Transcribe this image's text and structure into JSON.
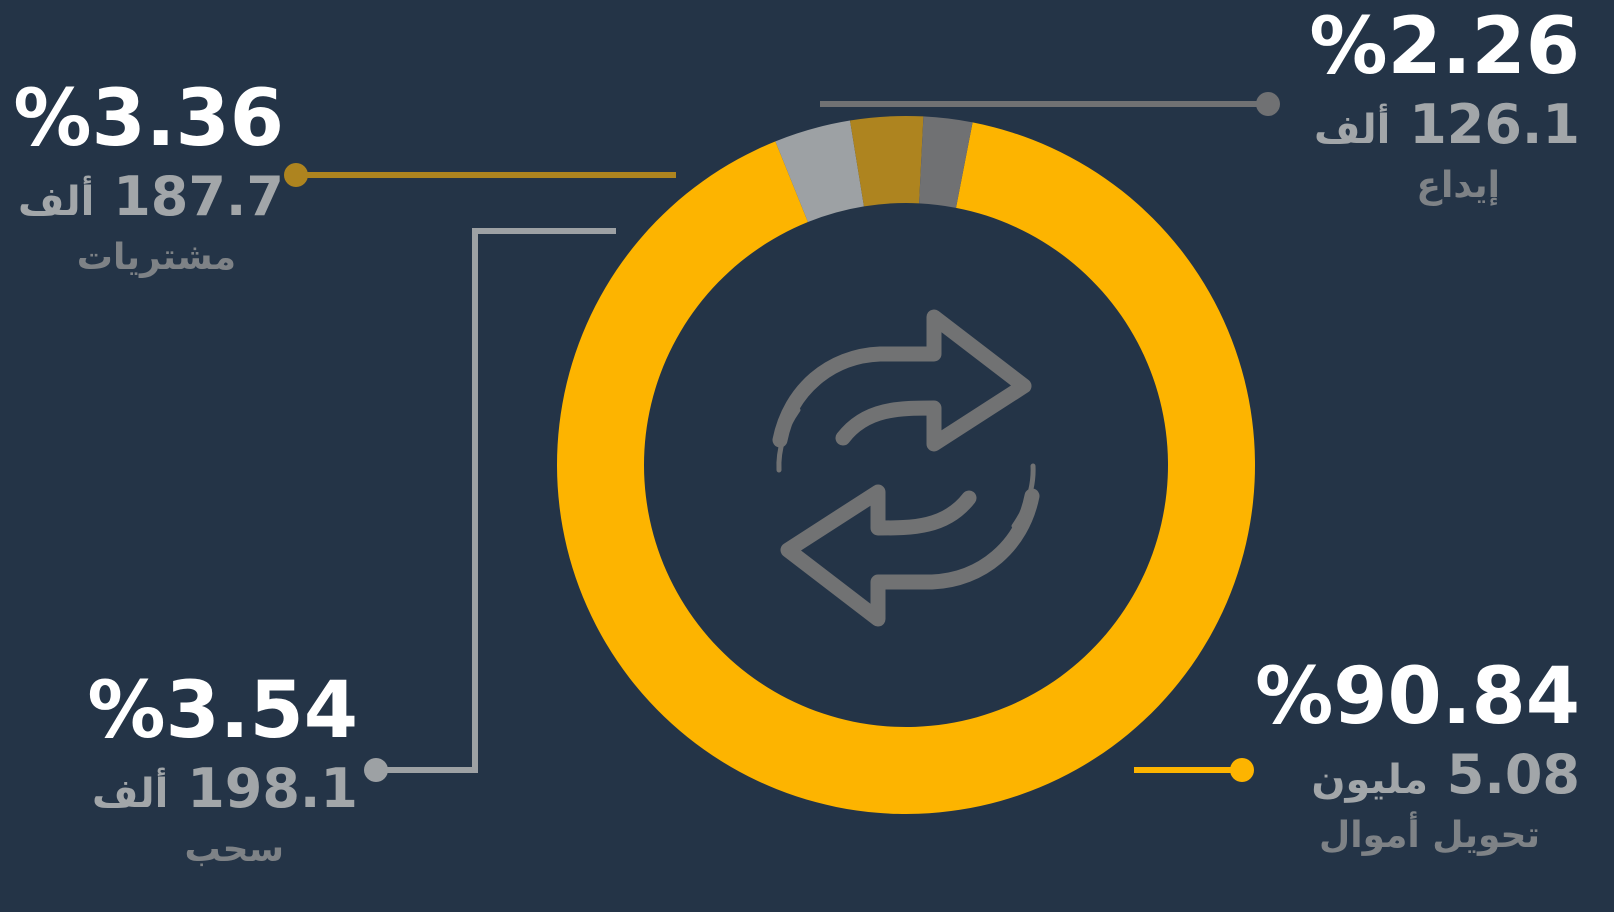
{
  "chart_data": {
    "type": "pie",
    "variant": "donut",
    "center_icon": "refresh-arrows-icon",
    "slices": [
      {
        "label": "تحويل أموال",
        "percent_label": "%90.84",
        "value": 90.84,
        "amount_value": "5.08",
        "amount_unit": "مليون",
        "color": "#fdb400"
      },
      {
        "label": "سحب",
        "percent_label": "%3.54",
        "value": 3.54,
        "amount_value": "198.1",
        "amount_unit": "ألف",
        "color": "#9da1a4"
      },
      {
        "label": "مشتريات",
        "percent_label": "%3.36",
        "value": 3.36,
        "amount_value": "187.7",
        "amount_unit": "ألف",
        "color": "#ae841f"
      },
      {
        "label": "إيداع",
        "percent_label": "%2.26",
        "value": 2.26,
        "amount_value": "126.1",
        "amount_unit": "ألف",
        "color": "#707173"
      }
    ]
  }
}
